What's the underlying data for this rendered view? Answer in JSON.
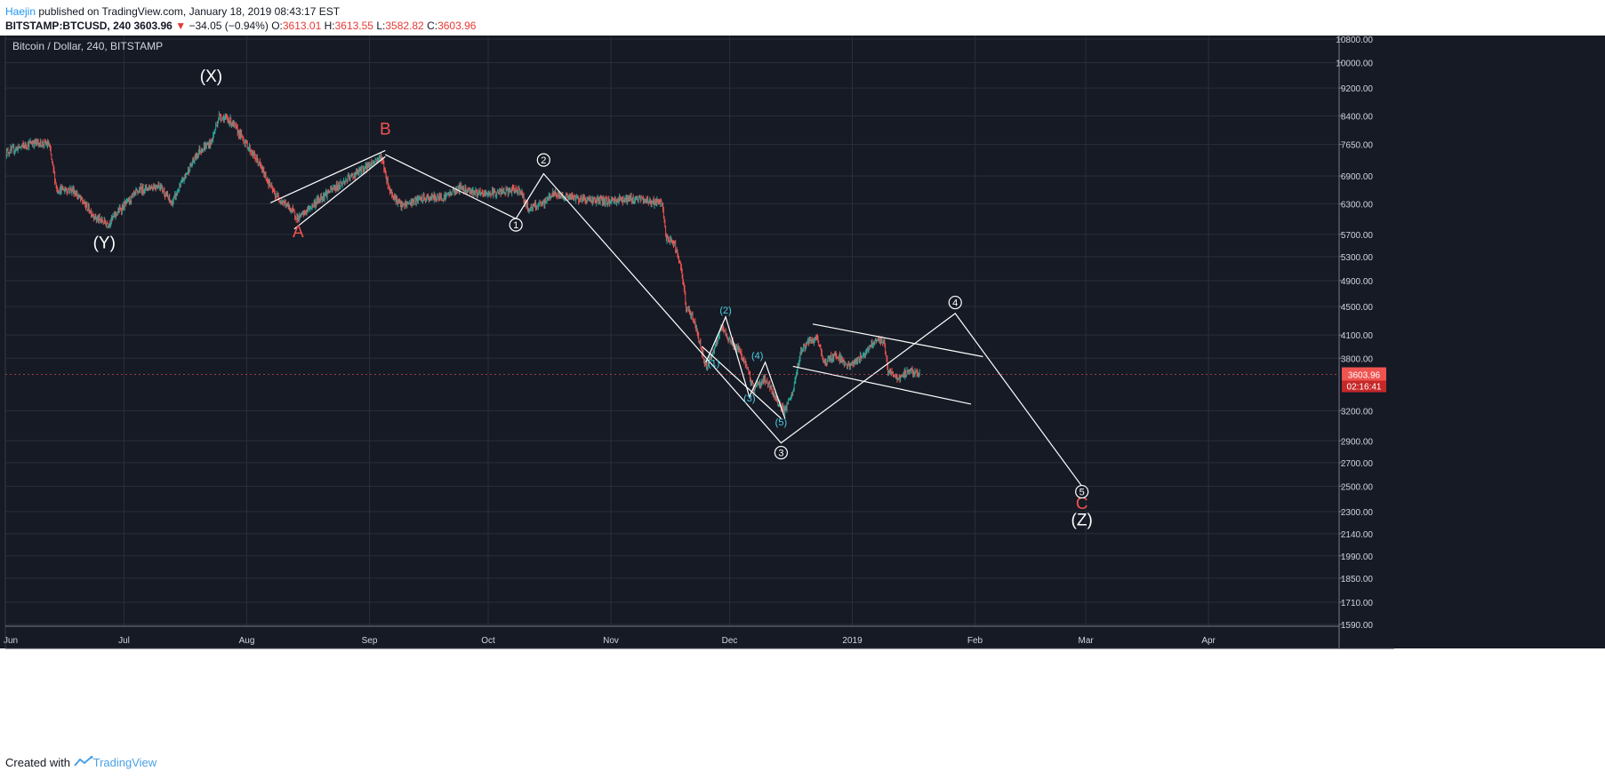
{
  "header": {
    "author": "Haejin",
    "published_text": " published on TradingView.com, January 18, 2019 08:43:17 EST",
    "symbol": "BITSTAMP:BTCUSD, 240",
    "last": "3603.96",
    "arrow": "▼",
    "change": "−34.05 (−0.94%)",
    "open_label": "O:",
    "open": "3613.01",
    "high_label": "H:",
    "high": "3613.55",
    "low_label": "L:",
    "low": "3582.82",
    "close_label": "C:",
    "close": "3603.96"
  },
  "colors": {
    "background": "#161a25",
    "grid": "#2a2e39",
    "text": "#d1d4dc",
    "wave_red": "#ef5350",
    "wave_cyan": "#4dd0e1",
    "drawing": "#ffffff",
    "price_tag": "#ef5350"
  },
  "chart_data": {
    "type": "candlestick",
    "title": "Bitcoin / Dollar, 240, BITSTAMP",
    "scale": "log",
    "ylim": [
      1590,
      10800
    ],
    "y_ticks": [
      "10800.00",
      "10000.00",
      "9200.00",
      "8400.00",
      "7650.00",
      "6900.00",
      "6300.00",
      "5700.00",
      "5300.00",
      "4900.00",
      "4500.00",
      "4100.00",
      "3800.00",
      "3200.00",
      "2900.00",
      "2700.00",
      "2500.00",
      "2300.00",
      "2140.00",
      "1990.00",
      "1850.00",
      "1710.00",
      "1590.00"
    ],
    "x_ticks": [
      "Jun",
      "Jul",
      "Aug",
      "Sep",
      "Oct",
      "Nov",
      "Dec",
      "2019",
      "Feb",
      "Mar",
      "Apr"
    ],
    "xlim": [
      "2018-06-01",
      "2019-05-04"
    ],
    "last_price": "3603.96",
    "countdown": "02:16:41",
    "price_path": [
      [
        "2018-06-01",
        7450
      ],
      [
        "2018-06-08",
        7700
      ],
      [
        "2018-06-12",
        7650
      ],
      [
        "2018-06-14",
        6600
      ],
      [
        "2018-06-18",
        6600
      ],
      [
        "2018-06-24",
        6000
      ],
      [
        "2018-06-27",
        5900
      ],
      [
        "2018-06-29",
        6100
      ],
      [
        "2018-07-05",
        6600
      ],
      [
        "2018-07-10",
        6700
      ],
      [
        "2018-07-13",
        6300
      ],
      [
        "2018-07-17",
        7000
      ],
      [
        "2018-07-20",
        7500
      ],
      [
        "2018-07-23",
        7700
      ],
      [
        "2018-07-25",
        8400
      ],
      [
        "2018-07-28",
        8250
      ],
      [
        "2018-07-31",
        7800
      ],
      [
        "2018-08-04",
        7200
      ],
      [
        "2018-08-08",
        6500
      ],
      [
        "2018-08-12",
        6200
      ],
      [
        "2018-08-14",
        6000
      ],
      [
        "2018-08-20",
        6450
      ],
      [
        "2018-08-26",
        6800
      ],
      [
        "2018-08-31",
        7100
      ],
      [
        "2018-09-04",
        7350
      ],
      [
        "2018-09-06",
        6600
      ],
      [
        "2018-09-09",
        6250
      ],
      [
        "2018-09-14",
        6400
      ],
      [
        "2018-09-20",
        6450
      ],
      [
        "2018-09-24",
        6650
      ],
      [
        "2018-09-29",
        6500
      ],
      [
        "2018-10-05",
        6550
      ],
      [
        "2018-10-09",
        6600
      ],
      [
        "2018-10-11",
        6200
      ],
      [
        "2018-10-15",
        6300
      ],
      [
        "2018-10-17",
        6500
      ],
      [
        "2018-10-25",
        6400
      ],
      [
        "2018-10-31",
        6350
      ],
      [
        "2018-11-04",
        6400
      ],
      [
        "2018-11-08",
        6400
      ],
      [
        "2018-11-14",
        6300
      ],
      [
        "2018-11-15",
        5600
      ],
      [
        "2018-11-17",
        5550
      ],
      [
        "2018-11-19",
        5000
      ],
      [
        "2018-11-20",
        4500
      ],
      [
        "2018-11-22",
        4300
      ],
      [
        "2018-11-25",
        3700
      ],
      [
        "2018-11-27",
        3900
      ],
      [
        "2018-11-29",
        4200
      ],
      [
        "2018-11-30",
        4100
      ],
      [
        "2018-12-04",
        3850
      ],
      [
        "2018-12-07",
        3450
      ],
      [
        "2018-12-10",
        3550
      ],
      [
        "2018-12-13",
        3300
      ],
      [
        "2018-12-15",
        3200
      ],
      [
        "2018-12-17",
        3400
      ],
      [
        "2018-12-19",
        3900
      ],
      [
        "2018-12-21",
        4000
      ],
      [
        "2018-12-23",
        4050
      ],
      [
        "2018-12-25",
        3750
      ],
      [
        "2018-12-28",
        3850
      ],
      [
        "2018-12-31",
        3700
      ],
      [
        "2019-01-03",
        3800
      ],
      [
        "2019-01-07",
        4050
      ],
      [
        "2019-01-09",
        4000
      ],
      [
        "2019-01-10",
        3650
      ],
      [
        "2019-01-13",
        3550
      ],
      [
        "2019-01-15",
        3650
      ],
      [
        "2019-01-18",
        3604
      ]
    ],
    "annotations": {
      "labels": [
        {
          "text": "(X)",
          "date": "2018-07-23",
          "price": 9400,
          "color": "white",
          "size": "big"
        },
        {
          "text": "(Y)",
          "date": "2018-06-26",
          "price": 5450,
          "color": "white",
          "size": "big"
        },
        {
          "text": "A",
          "date": "2018-08-14",
          "price": 5650,
          "color": "red",
          "size": "big"
        },
        {
          "text": "B",
          "date": "2018-09-05",
          "price": 7900,
          "color": "red",
          "size": "big"
        },
        {
          "text": "C",
          "date": "2019-02-28",
          "price": 2320,
          "color": "red",
          "size": "big"
        },
        {
          "text": "(Z)",
          "date": "2019-02-28",
          "price": 2200,
          "color": "white",
          "size": "big"
        }
      ],
      "circled": [
        {
          "text": "1",
          "date": "2018-10-08",
          "price": 5880
        },
        {
          "text": "2",
          "date": "2018-10-15",
          "price": 7270
        },
        {
          "text": "3",
          "date": "2018-12-14",
          "price": 2790
        },
        {
          "text": "4",
          "date": "2019-01-27",
          "price": 4560
        },
        {
          "text": "5",
          "date": "2019-02-28",
          "price": 2455
        }
      ],
      "sub_waves": [
        {
          "text": "(1)",
          "date": "2018-11-27",
          "price": 3700
        },
        {
          "text": "(2)",
          "date": "2018-11-30",
          "price": 4400
        },
        {
          "text": "(3)",
          "date": "2018-12-06",
          "price": 3300
        },
        {
          "text": "(4)",
          "date": "2018-12-08",
          "price": 3790
        },
        {
          "text": "(5)",
          "date": "2018-12-14",
          "price": 3050
        }
      ],
      "wave_path": [
        [
          "2018-09-05",
          7400
        ],
        [
          "2018-10-08",
          6000
        ],
        [
          "2018-10-15",
          6950
        ],
        [
          "2018-12-14",
          2880
        ],
        [
          "2019-01-27",
          4400
        ],
        [
          "2019-02-28",
          2500
        ]
      ],
      "sub_wave_path": [
        [
          "2018-11-25",
          3750
        ],
        [
          "2018-11-30",
          4350
        ],
        [
          "2018-12-06",
          3350
        ],
        [
          "2018-12-10",
          3750
        ],
        [
          "2018-12-15",
          3120
        ]
      ],
      "lines": [
        [
          [
            "2018-08-07",
            6320
          ],
          [
            "2018-09-05",
            7500
          ]
        ],
        [
          [
            "2018-08-13",
            5800
          ],
          [
            "2018-09-05",
            7350
          ]
        ],
        [
          [
            "2018-12-22",
            4250
          ],
          [
            "2019-02-03",
            3820
          ]
        ],
        [
          [
            "2018-12-17",
            3700
          ],
          [
            "2019-01-31",
            3270
          ]
        ],
        [
          [
            "2018-11-24",
            3950
          ],
          [
            "2018-12-14",
            3120
          ]
        ]
      ]
    }
  },
  "footer": {
    "created_with": "Created with",
    "brand": "TradingView"
  }
}
